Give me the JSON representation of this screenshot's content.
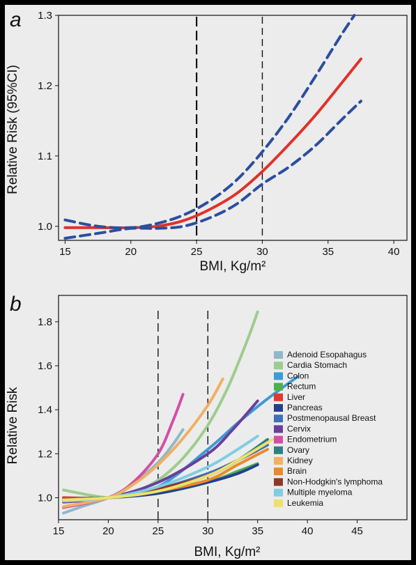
{
  "chart_data": [
    {
      "panel": "a",
      "type": "line",
      "xlabel": "BMI, Kg/m²",
      "ylabel": "Relative Risk (95%CI)",
      "xlim": [
        14.5,
        41
      ],
      "ylim": [
        0.98,
        1.3
      ],
      "xticks": [
        "15",
        "20",
        "25",
        "30",
        "35",
        "40"
      ],
      "yticks": [
        "1.0",
        "1.1",
        "1.2",
        "1.3"
      ],
      "reference_lines_x": [
        25,
        30
      ],
      "series": [
        {
          "role": "estimate",
          "color": "#e0322b",
          "style": "solid",
          "x": [
            15,
            17.5,
            20,
            22,
            24,
            26,
            28,
            30,
            32,
            34,
            36,
            37.5
          ],
          "y": [
            0.998,
            0.998,
            0.998,
            1.0,
            1.008,
            1.024,
            1.046,
            1.078,
            1.116,
            1.157,
            1.203,
            1.238
          ]
        },
        {
          "role": "upper",
          "color": "#2c4e9e",
          "style": "dashed",
          "x": [
            15,
            17.5,
            20,
            22,
            24,
            26,
            28,
            30,
            32,
            34,
            36,
            37
          ],
          "y": [
            1.009,
            1.0,
            0.998,
            1.004,
            1.016,
            1.036,
            1.065,
            1.106,
            1.155,
            1.212,
            1.272,
            1.3
          ]
        },
        {
          "role": "lower",
          "color": "#2c4e9e",
          "style": "dashed",
          "x": [
            15,
            17.5,
            20,
            22,
            24,
            26,
            28,
            30,
            32,
            34,
            36,
            37.5
          ],
          "y": [
            0.983,
            0.99,
            0.997,
            0.997,
            1.0,
            1.012,
            1.031,
            1.06,
            1.084,
            1.114,
            1.151,
            1.178
          ]
        }
      ]
    },
    {
      "panel": "b",
      "type": "line",
      "xlabel": "BMI, Kg/m²",
      "ylabel": "Relative Risk",
      "xlim": [
        15,
        50
      ],
      "ylim": [
        0.9,
        1.92
      ],
      "xticks": [
        "15",
        "20",
        "25",
        "30",
        "35",
        "40",
        "45"
      ],
      "yticks": [
        "1.0",
        "1.2",
        "1.4",
        "1.6",
        "1.8"
      ],
      "reference_lines_x": [
        25,
        30
      ],
      "series": [
        {
          "name": "Adenoid Esopahagus",
          "color": "#8fb9c9",
          "x": [
            15.5,
            17.5,
            20,
            22.5,
            25,
            26.5,
            27.5
          ],
          "y": [
            0.93,
            0.962,
            1.0,
            1.064,
            1.16,
            1.243,
            1.31
          ]
        },
        {
          "name": "Cardia Stomach",
          "color": "#9ccd8e",
          "x": [
            15.5,
            20,
            22.5,
            25,
            27.5,
            30,
            32,
            34,
            35
          ],
          "y": [
            1.035,
            1.0,
            1.025,
            1.08,
            1.18,
            1.33,
            1.5,
            1.72,
            1.845
          ]
        },
        {
          "name": "Colon",
          "color": "#3d9bd6",
          "x": [
            15.5,
            20,
            25,
            30,
            33,
            36,
            39
          ],
          "y": [
            0.99,
            1.0,
            1.05,
            1.22,
            1.34,
            1.45,
            1.55
          ]
        },
        {
          "name": "Rectum",
          "color": "#4cb04c",
          "x": [
            15.5,
            20,
            25,
            30,
            33,
            35
          ],
          "y": [
            1.0,
            1.0,
            1.02,
            1.07,
            1.12,
            1.155
          ]
        },
        {
          "name": "Liver",
          "color": "#e03a2e",
          "x": [
            15.5,
            20,
            25,
            30,
            33,
            35
          ],
          "y": [
            1.0,
            1.0,
            1.04,
            1.11,
            1.17,
            1.215
          ]
        },
        {
          "name": "Pancreas",
          "color": "#243f8f",
          "x": [
            15.5,
            20,
            25,
            30,
            33,
            35
          ],
          "y": [
            0.99,
            1.0,
            1.02,
            1.07,
            1.11,
            1.15
          ]
        },
        {
          "name": "Postmenopausal Breast",
          "color": "#3f70b9",
          "x": [
            15.5,
            20,
            25,
            30,
            33,
            36
          ],
          "y": [
            0.985,
            1.0,
            1.04,
            1.11,
            1.17,
            1.24
          ]
        },
        {
          "name": "Cervix",
          "color": "#6a3f9b",
          "x": [
            15.5,
            20,
            25,
            30,
            32.5,
            35
          ],
          "y": [
            0.98,
            1.0,
            1.07,
            1.2,
            1.31,
            1.44
          ]
        },
        {
          "name": "Endometrium",
          "color": "#d24fa5",
          "x": [
            15.5,
            20,
            22.5,
            25,
            26.5,
            27.5
          ],
          "y": [
            0.955,
            1.0,
            1.07,
            1.2,
            1.35,
            1.47
          ]
        },
        {
          "name": "Ovary",
          "color": "#2f7f80",
          "x": [
            15.5,
            20,
            25,
            30,
            33,
            36
          ],
          "y": [
            0.99,
            1.0,
            1.03,
            1.1,
            1.17,
            1.265
          ]
        },
        {
          "name": "Kidney",
          "color": "#f0b060",
          "x": [
            15.5,
            20,
            22.5,
            25,
            27.5,
            30,
            31.5
          ],
          "y": [
            0.96,
            1.0,
            1.06,
            1.15,
            1.27,
            1.42,
            1.54
          ]
        },
        {
          "name": "Brain",
          "color": "#e88a2c",
          "x": [
            15.5,
            20,
            25,
            30,
            33,
            36
          ],
          "y": [
            0.99,
            1.0,
            1.03,
            1.08,
            1.15,
            1.22
          ]
        },
        {
          "name": "Non-Hodgkin's lymphoma",
          "color": "#8b3a2a",
          "x": [
            15.5,
            20,
            25,
            30,
            33
          ],
          "y": [
            0.99,
            1.0,
            1.04,
            1.1,
            1.17
          ]
        },
        {
          "name": "Multiple myeloma",
          "color": "#7fcde3",
          "x": [
            15.5,
            20,
            25,
            30,
            33,
            35
          ],
          "y": [
            0.985,
            1.0,
            1.05,
            1.14,
            1.22,
            1.28
          ]
        },
        {
          "name": "Leukemia",
          "color": "#ece26a",
          "x": [
            15.5,
            20,
            25,
            30,
            33,
            36.5
          ],
          "y": [
            0.99,
            1.0,
            1.03,
            1.1,
            1.17,
            1.265
          ]
        }
      ]
    }
  ]
}
